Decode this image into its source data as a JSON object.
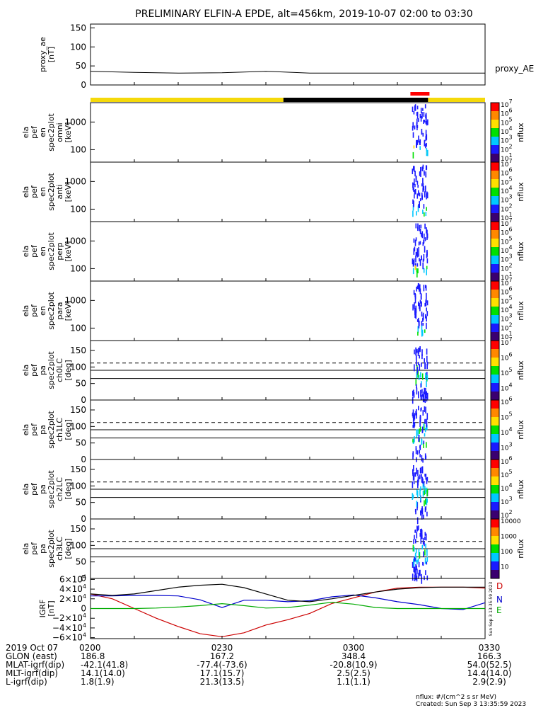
{
  "title": "PRELIMINARY ELFIN-A EPDE, alt=456km, 2019-10-07 02:00 to 03:30",
  "colors": {
    "axis": "#000000",
    "sun_bar": "#f5d90a",
    "shadow_bar": "#000000",
    "science_bar": "#ff0000",
    "grf_d": "#cc0000",
    "grf_n": "#0000cc",
    "grf_e": "#00aa00",
    "grf_total": "#000000"
  },
  "chart_data": [
    {
      "type": "line",
      "panel": "proxy_ae",
      "ylabel": [
        "proxy_ae",
        "[nT]"
      ],
      "yticks": [
        "150",
        "100",
        "50",
        "0"
      ],
      "ylim": [
        0,
        160
      ],
      "legend": "proxy_AE",
      "x_minutes": [
        0,
        10,
        20,
        30,
        40,
        50,
        55,
        60,
        70,
        80,
        90
      ],
      "values": [
        36,
        33,
        31,
        32,
        36,
        31,
        31,
        31,
        31,
        31,
        31
      ]
    },
    {
      "type": "bar",
      "panel": "orbit_status",
      "segments": [
        {
          "start_min": 0,
          "end_min": 44,
          "kind": "sunlight"
        },
        {
          "start_min": 44,
          "end_min": 77,
          "kind": "shadow"
        },
        {
          "start_min": 77,
          "end_min": 90,
          "kind": "sunlight"
        }
      ],
      "science_zone": [
        72,
        77
      ]
    },
    {
      "type": "heatmap",
      "panel": "ela_pef_en_spec2plot_omni",
      "ylabel": [
        "ela",
        "pef",
        "en",
        "spec2plot",
        "omni",
        "[keV]"
      ],
      "yticks": [
        "1000",
        "100"
      ],
      "colorbar_label": "nflux",
      "colorbar_ticks": [
        "10^7",
        "10^6",
        "10^5",
        "10^4",
        "10^3",
        "10^2",
        "10^1"
      ],
      "active_interval_min": [
        73,
        77
      ]
    },
    {
      "type": "heatmap",
      "panel": "ela_pef_en_spec2plot_anti",
      "ylabel": [
        "ela",
        "pef",
        "en",
        "spec2plot",
        "anti",
        "[keV]"
      ],
      "yticks": [
        "1000",
        "100"
      ],
      "colorbar_label": "nflux",
      "colorbar_ticks": [
        "10^7",
        "10^6",
        "10^5",
        "10^4",
        "10^3",
        "10^2",
        "10^1"
      ],
      "active_interval_min": [
        73,
        77
      ]
    },
    {
      "type": "heatmap",
      "panel": "ela_pef_en_spec2plot_perp",
      "ylabel": [
        "ela",
        "pef",
        "en",
        "spec2plot",
        "perp",
        "[keV]"
      ],
      "yticks": [
        "1000",
        "100"
      ],
      "colorbar_label": "nflux",
      "colorbar_ticks": [
        "10^7",
        "10^6",
        "10^5",
        "10^4",
        "10^3",
        "10^2",
        "10^1"
      ],
      "active_interval_min": [
        73,
        77
      ]
    },
    {
      "type": "heatmap",
      "panel": "ela_pef_en_spec2plot_para",
      "ylabel": [
        "ela",
        "pef",
        "en",
        "spec2plot",
        "para",
        "[keV]"
      ],
      "yticks": [
        "1000",
        "100"
      ],
      "colorbar_label": "nflux",
      "colorbar_ticks": [
        "10^7",
        "10^6",
        "10^5",
        "10^4",
        "10^3",
        "10^2",
        "10^1"
      ],
      "active_interval_min": [
        73,
        77
      ]
    },
    {
      "type": "heatmap",
      "panel": "ela_pef_pa_spec2plot_ch0LC",
      "ylabel": [
        "ela",
        "pef",
        "pa",
        "spec2plot",
        "ch0LC",
        "[deg]"
      ],
      "yticks": [
        "150",
        "100",
        "50",
        "0"
      ],
      "ylim": [
        0,
        180
      ],
      "loss_cone_deg": [
        65,
        90
      ],
      "dashed_deg": 112,
      "colorbar_label": "nflux",
      "colorbar_ticks": [
        "10^7",
        "10^6",
        "10^5",
        "10^4"
      ]
    },
    {
      "type": "heatmap",
      "panel": "ela_pef_pa_spec2plot_ch1LC",
      "ylabel": [
        "ela",
        "pef",
        "pa",
        "spec2plot",
        "ch1LC",
        "[deg]"
      ],
      "yticks": [
        "150",
        "100",
        "50",
        "0"
      ],
      "ylim": [
        0,
        180
      ],
      "loss_cone_deg": [
        65,
        90
      ],
      "dashed_deg": 112,
      "colorbar_label": "nflux",
      "colorbar_ticks": [
        "10^6",
        "10^5",
        "10^4",
        "10^3"
      ]
    },
    {
      "type": "heatmap",
      "panel": "ela_pef_pa_spec2plot_ch2LC",
      "ylabel": [
        "ela",
        "pef",
        "pa",
        "spec2plot",
        "ch2LC",
        "[deg]"
      ],
      "yticks": [
        "150",
        "100",
        "50",
        "0"
      ],
      "ylim": [
        0,
        180
      ],
      "loss_cone_deg": [
        65,
        90
      ],
      "dashed_deg": 112,
      "colorbar_label": "nflux",
      "colorbar_ticks": [
        "10^6",
        "10^5",
        "10^4",
        "10^3",
        "10^2"
      ]
    },
    {
      "type": "heatmap",
      "panel": "ela_pef_pa_spec2plot_ch3LC",
      "ylabel": [
        "ela",
        "pef",
        "pa",
        "spec2plot",
        "ch3LC",
        "[deg]"
      ],
      "yticks": [
        "150",
        "100",
        "50",
        "0"
      ],
      "ylim": [
        0,
        180
      ],
      "loss_cone_deg": [
        65,
        90
      ],
      "dashed_deg": 112,
      "colorbar_label": "nflux",
      "colorbar_ticks": [
        "10000",
        "1000",
        "100",
        "10"
      ]
    },
    {
      "type": "line",
      "panel": "IGRF",
      "ylabel": [
        "IGRF",
        "[nT]"
      ],
      "yticks": [
        "6×10^4",
        "4×10^4",
        "2×10^4",
        "0",
        "−2×10^4",
        "−4×10^4",
        "−6×10^4"
      ],
      "ylim": [
        -62000,
        62000
      ],
      "x_minutes": [
        0,
        5,
        10,
        15,
        20,
        25,
        30,
        35,
        40,
        45,
        50,
        55,
        60,
        65,
        70,
        75,
        80,
        85,
        90
      ],
      "series": [
        {
          "name": "D",
          "values": [
            30000,
            20000,
            0,
            -20000,
            -37000,
            -52000,
            -58000,
            -50000,
            -34000,
            -23000,
            -10000,
            10000,
            22000,
            34000,
            42000,
            44000,
            44000,
            44000,
            42000
          ]
        },
        {
          "name": "N",
          "values": [
            26000,
            26000,
            27000,
            27000,
            26000,
            18000,
            2000,
            17000,
            17000,
            14000,
            16000,
            24000,
            28000,
            22000,
            14000,
            8000,
            0,
            -2000,
            12000
          ]
        },
        {
          "name": "E",
          "values": [
            0,
            0,
            0,
            1000,
            3000,
            6000,
            10000,
            6000,
            1000,
            2000,
            7000,
            13000,
            9000,
            2000,
            0,
            0,
            0,
            0,
            0
          ]
        },
        {
          "values": [
            30000,
            27000,
            30000,
            37000,
            44000,
            48000,
            50000,
            43000,
            30000,
            17000,
            14000,
            20000,
            27000,
            34000,
            40000,
            43000,
            44000,
            44000,
            44000
          ]
        }
      ]
    }
  ],
  "footer": {
    "rows": [
      {
        "label": "2019 Oct 07",
        "values": [
          "0200",
          "0230",
          "0300",
          "0330"
        ]
      },
      {
        "label": "GLON (east)",
        "values": [
          "186.8",
          "167.2",
          "348.4",
          "166.3"
        ]
      },
      {
        "label": "MLAT-igrf(dip)",
        "values": [
          "-42.1(41.8)",
          "-77.4(-73.6)",
          "-20.8(10.9)",
          "54.0(52.5)"
        ]
      },
      {
        "label": "MLT-igrf(dip)",
        "values": [
          "14.1(14.0)",
          "17.1(15.7)",
          "2.5(2.5)",
          "14.4(14.0)"
        ]
      },
      {
        "label": "L-igrf(dip)",
        "values": [
          "1.8(1.9)",
          "21.3(13.5)",
          "1.1(1.1)",
          "2.9(2.9)"
        ]
      }
    ],
    "units_note": "nflux: #/(cm^2 s sr MeV)",
    "created": "Created: Sun Sep  3 13:35:59 2023",
    "side_stamp": "Sun Sep  3 13:35:59 2023"
  }
}
